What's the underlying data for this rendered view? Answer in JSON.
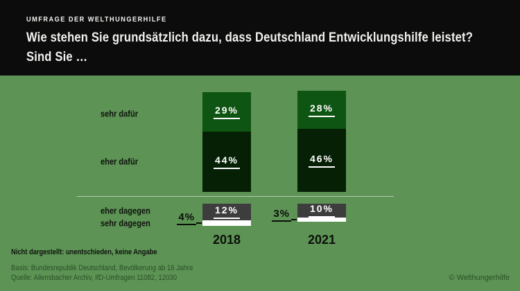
{
  "header": {
    "kicker": "UMFRAGE DER WELTHUNGERHILFE",
    "title_line1": "Wie stehen Sie grundsätzlich dazu, dass Deutschland Entwicklungshilfe leistet?",
    "title_line2": "Sind Sie …"
  },
  "chart_data": {
    "type": "bar",
    "stacked": true,
    "title": "Wie stehen Sie grundsätzlich dazu, dass Deutschland Entwicklungshilfe leistet? Sind Sie …",
    "categories": [
      "sehr dafür",
      "eher dafür",
      "eher dagegen",
      "sehr dagegen"
    ],
    "series": [
      {
        "name": "2018",
        "values": [
          29,
          44,
          12,
          4
        ]
      },
      {
        "name": "2021",
        "values": [
          28,
          46,
          10,
          3
        ]
      }
    ],
    "unit": "%",
    "segment_colors": [
      "#0e5412",
      "#052004",
      "#3d3d3d",
      "#ffffff"
    ],
    "legend_position": "left",
    "grid": false,
    "baseline": "zero line separates dafür (above) from dagegen (below)"
  },
  "footer": {
    "note": "Nicht dargestellt: unentschieden, keine Angabe",
    "basis": "Basis: Bundesrepublik Deutschland, Bevölkerung ab 16 Jahre",
    "quelle": "Quelle: Allensbacher Archiv, IfD-Umfragen 11082, 12030",
    "copyright": "© Welthungerhilfe"
  },
  "colors": {
    "background": "#5d9355",
    "header_bg": "#0c0c0c",
    "header_text": "#f2f2ef",
    "label_text": "#0e130c",
    "source_text": "#2a4f26",
    "divider": "#d2e2cc"
  }
}
